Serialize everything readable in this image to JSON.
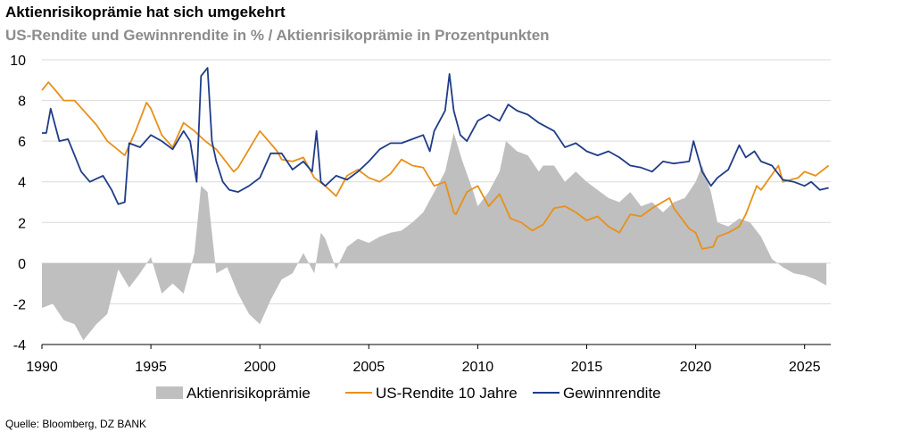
{
  "header": {
    "title": "Aktienrisikoprämie hat sich umgekehrt",
    "subtitle": "US-Rendite und Gewinnrendite in % / Aktienrisikoprämie in Prozentpunkten"
  },
  "footer": {
    "source": "Quelle: Bloomberg, DZ BANK"
  },
  "colors": {
    "premium": "#bfbfbf",
    "us_yield": "#e8901a",
    "earnings_yield": "#1f3c88",
    "grid": "#d9d9d9"
  },
  "chart_data": {
    "type": "line",
    "xlim": [
      1990,
      2026.2
    ],
    "ylim": [
      -4,
      10
    ],
    "x_ticks": [
      "1990",
      "1995",
      "2000",
      "2005",
      "2010",
      "2015",
      "2020",
      "2025"
    ],
    "y_ticks": [
      "-4",
      "-2",
      "0",
      "2",
      "4",
      "6",
      "8",
      "10"
    ],
    "grid": "horizontal",
    "legend": "bottom",
    "series": [
      {
        "name": "Aktienrisikoprämie",
        "type": "area",
        "x": [
          1990,
          1990.5,
          1991,
          1991.5,
          1991.9,
          1992.5,
          1993,
          1993.5,
          1994,
          1994.5,
          1995,
          1995.5,
          1996,
          1996.5,
          1997,
          1997.3,
          1997.6,
          1998,
          1998.5,
          1999,
          1999.5,
          2000,
          2000.5,
          2001,
          2001.5,
          2002,
          2002.5,
          2002.8,
          2003,
          2003.5,
          2004,
          2004.5,
          2005,
          2005.5,
          2006,
          2006.5,
          2007,
          2007.5,
          2008,
          2008.5,
          2008.9,
          2009.3,
          2009.8,
          2010,
          2010.5,
          2011,
          2011.3,
          2011.8,
          2012.3,
          2012.8,
          2013,
          2013.5,
          2014,
          2014.5,
          2015,
          2015.5,
          2016,
          2016.5,
          2017,
          2017.5,
          2018,
          2018.5,
          2019,
          2019.5,
          2020,
          2020.3,
          2020.7,
          2021,
          2021.5,
          2022,
          2022.5,
          2023,
          2023.5,
          2024,
          2024.5,
          2025,
          2025.5,
          2026
        ],
        "values": [
          -2.2,
          -2.0,
          -2.8,
          -3.0,
          -3.8,
          -3.0,
          -2.5,
          -0.3,
          -1.2,
          -0.5,
          0.3,
          -1.5,
          -1.0,
          -1.5,
          0.5,
          3.8,
          3.5,
          -0.5,
          -0.2,
          -1.5,
          -2.5,
          -3.0,
          -1.8,
          -0.8,
          -0.5,
          0.5,
          -0.5,
          1.5,
          1.2,
          -0.3,
          0.8,
          1.2,
          1.0,
          1.3,
          1.5,
          1.6,
          2.0,
          2.5,
          3.5,
          4.5,
          6.4,
          5.0,
          3.5,
          2.8,
          3.5,
          4.5,
          6.0,
          5.5,
          5.3,
          4.5,
          4.8,
          4.8,
          4.0,
          4.5,
          4.0,
          3.6,
          3.2,
          3.0,
          3.5,
          2.8,
          3.0,
          2.5,
          3.0,
          3.2,
          4.0,
          4.8,
          3.5,
          2.0,
          1.8,
          2.2,
          2.0,
          1.3,
          0.2,
          -0.2,
          -0.5,
          -0.6,
          -0.8,
          -1.1
        ]
      },
      {
        "name": "US-Rendite 10 Jahre",
        "type": "line",
        "x": [
          1990,
          1990.3,
          1990.7,
          1991,
          1991.5,
          1992,
          1992.5,
          1993,
          1993.8,
          1994.3,
          1994.8,
          1995,
          1995.5,
          1996,
          1996.5,
          1997,
          1997.5,
          1998,
          1998.8,
          1999,
          1999.5,
          2000,
          2000.4,
          2000.8,
          2001,
          2001.5,
          2002,
          2002.5,
          2003,
          2003.5,
          2004,
          2004.5,
          2005,
          2005.5,
          2006,
          2006.5,
          2007,
          2007.5,
          2008,
          2008.5,
          2008.9,
          2009,
          2009.5,
          2010,
          2010.5,
          2011,
          2011.5,
          2012,
          2012.5,
          2013,
          2013.5,
          2014,
          2014.5,
          2015,
          2015.5,
          2016,
          2016.5,
          2017,
          2017.5,
          2018,
          2018.8,
          2019,
          2019.7,
          2020,
          2020.3,
          2020.8,
          2021,
          2021.5,
          2022,
          2022.3,
          2022.8,
          2023,
          2023.8,
          2024,
          2024.7,
          2025,
          2025.5,
          2026.1
        ],
        "values": [
          8.5,
          8.9,
          8.4,
          8.0,
          8.0,
          7.4,
          6.8,
          6.0,
          5.3,
          6.5,
          7.9,
          7.6,
          6.3,
          5.7,
          6.9,
          6.5,
          6.0,
          5.6,
          4.5,
          4.7,
          5.6,
          6.5,
          6.0,
          5.5,
          5.1,
          5.0,
          5.2,
          4.2,
          3.8,
          3.3,
          4.3,
          4.6,
          4.2,
          4.0,
          4.4,
          5.1,
          4.8,
          4.7,
          3.8,
          4.0,
          2.5,
          2.4,
          3.5,
          3.8,
          2.8,
          3.4,
          2.2,
          2.0,
          1.6,
          1.9,
          2.7,
          2.8,
          2.5,
          2.1,
          2.3,
          1.8,
          1.5,
          2.4,
          2.3,
          2.7,
          3.2,
          2.7,
          1.7,
          1.5,
          0.7,
          0.8,
          1.3,
          1.5,
          1.8,
          2.4,
          3.8,
          3.6,
          4.8,
          4.0,
          4.2,
          4.5,
          4.3,
          4.8
        ]
      },
      {
        "name": "Gewinnrendite",
        "type": "line",
        "x": [
          1990,
          1990.2,
          1990.4,
          1990.8,
          1991.2,
          1991.8,
          1992.2,
          1992.8,
          1993.2,
          1993.5,
          1993.8,
          1994,
          1994.5,
          1995,
          1995.5,
          1996,
          1996.5,
          1996.8,
          1997.1,
          1997.3,
          1997.6,
          1997.8,
          1998,
          1998.3,
          1998.6,
          1999,
          1999.5,
          2000,
          2000.5,
          2001,
          2001.5,
          2002,
          2002.4,
          2002.6,
          2002.8,
          2003,
          2003.5,
          2004,
          2004.5,
          2005,
          2005.5,
          2006,
          2006.5,
          2007,
          2007.5,
          2007.8,
          2008,
          2008.5,
          2008.7,
          2008.9,
          2009.2,
          2009.5,
          2010,
          2010.5,
          2011,
          2011.4,
          2011.8,
          2012.3,
          2012.8,
          2013.5,
          2014,
          2014.5,
          2015,
          2015.5,
          2016,
          2016.5,
          2017,
          2017.5,
          2018,
          2018.5,
          2019,
          2019.7,
          2019.9,
          2020.3,
          2020.7,
          2021,
          2021.5,
          2022,
          2022.3,
          2022.7,
          2023,
          2023.5,
          2024,
          2024.5,
          2025,
          2025.3,
          2025.7,
          2026.1
        ],
        "values": [
          6.4,
          6.4,
          7.6,
          6.0,
          6.1,
          4.5,
          4.0,
          4.3,
          3.6,
          2.9,
          3.0,
          5.9,
          5.7,
          6.3,
          6.0,
          5.6,
          6.5,
          6.0,
          4.0,
          9.2,
          9.6,
          6.0,
          5.0,
          4.0,
          3.6,
          3.5,
          3.8,
          4.2,
          5.4,
          5.4,
          4.6,
          5.0,
          4.5,
          6.5,
          4.0,
          3.8,
          4.3,
          4.1,
          4.5,
          5.0,
          5.6,
          5.9,
          5.9,
          6.1,
          6.3,
          5.5,
          6.5,
          7.5,
          9.3,
          7.5,
          6.3,
          6.0,
          7.0,
          7.3,
          7.0,
          7.8,
          7.5,
          7.3,
          6.9,
          6.5,
          5.7,
          5.9,
          5.5,
          5.3,
          5.5,
          5.2,
          4.8,
          4.7,
          4.5,
          5.0,
          4.9,
          5.0,
          6.0,
          4.5,
          3.8,
          4.2,
          4.6,
          5.8,
          5.2,
          5.5,
          5.0,
          4.8,
          4.1,
          4.0,
          3.8,
          4.0,
          3.6,
          3.7
        ]
      }
    ]
  }
}
